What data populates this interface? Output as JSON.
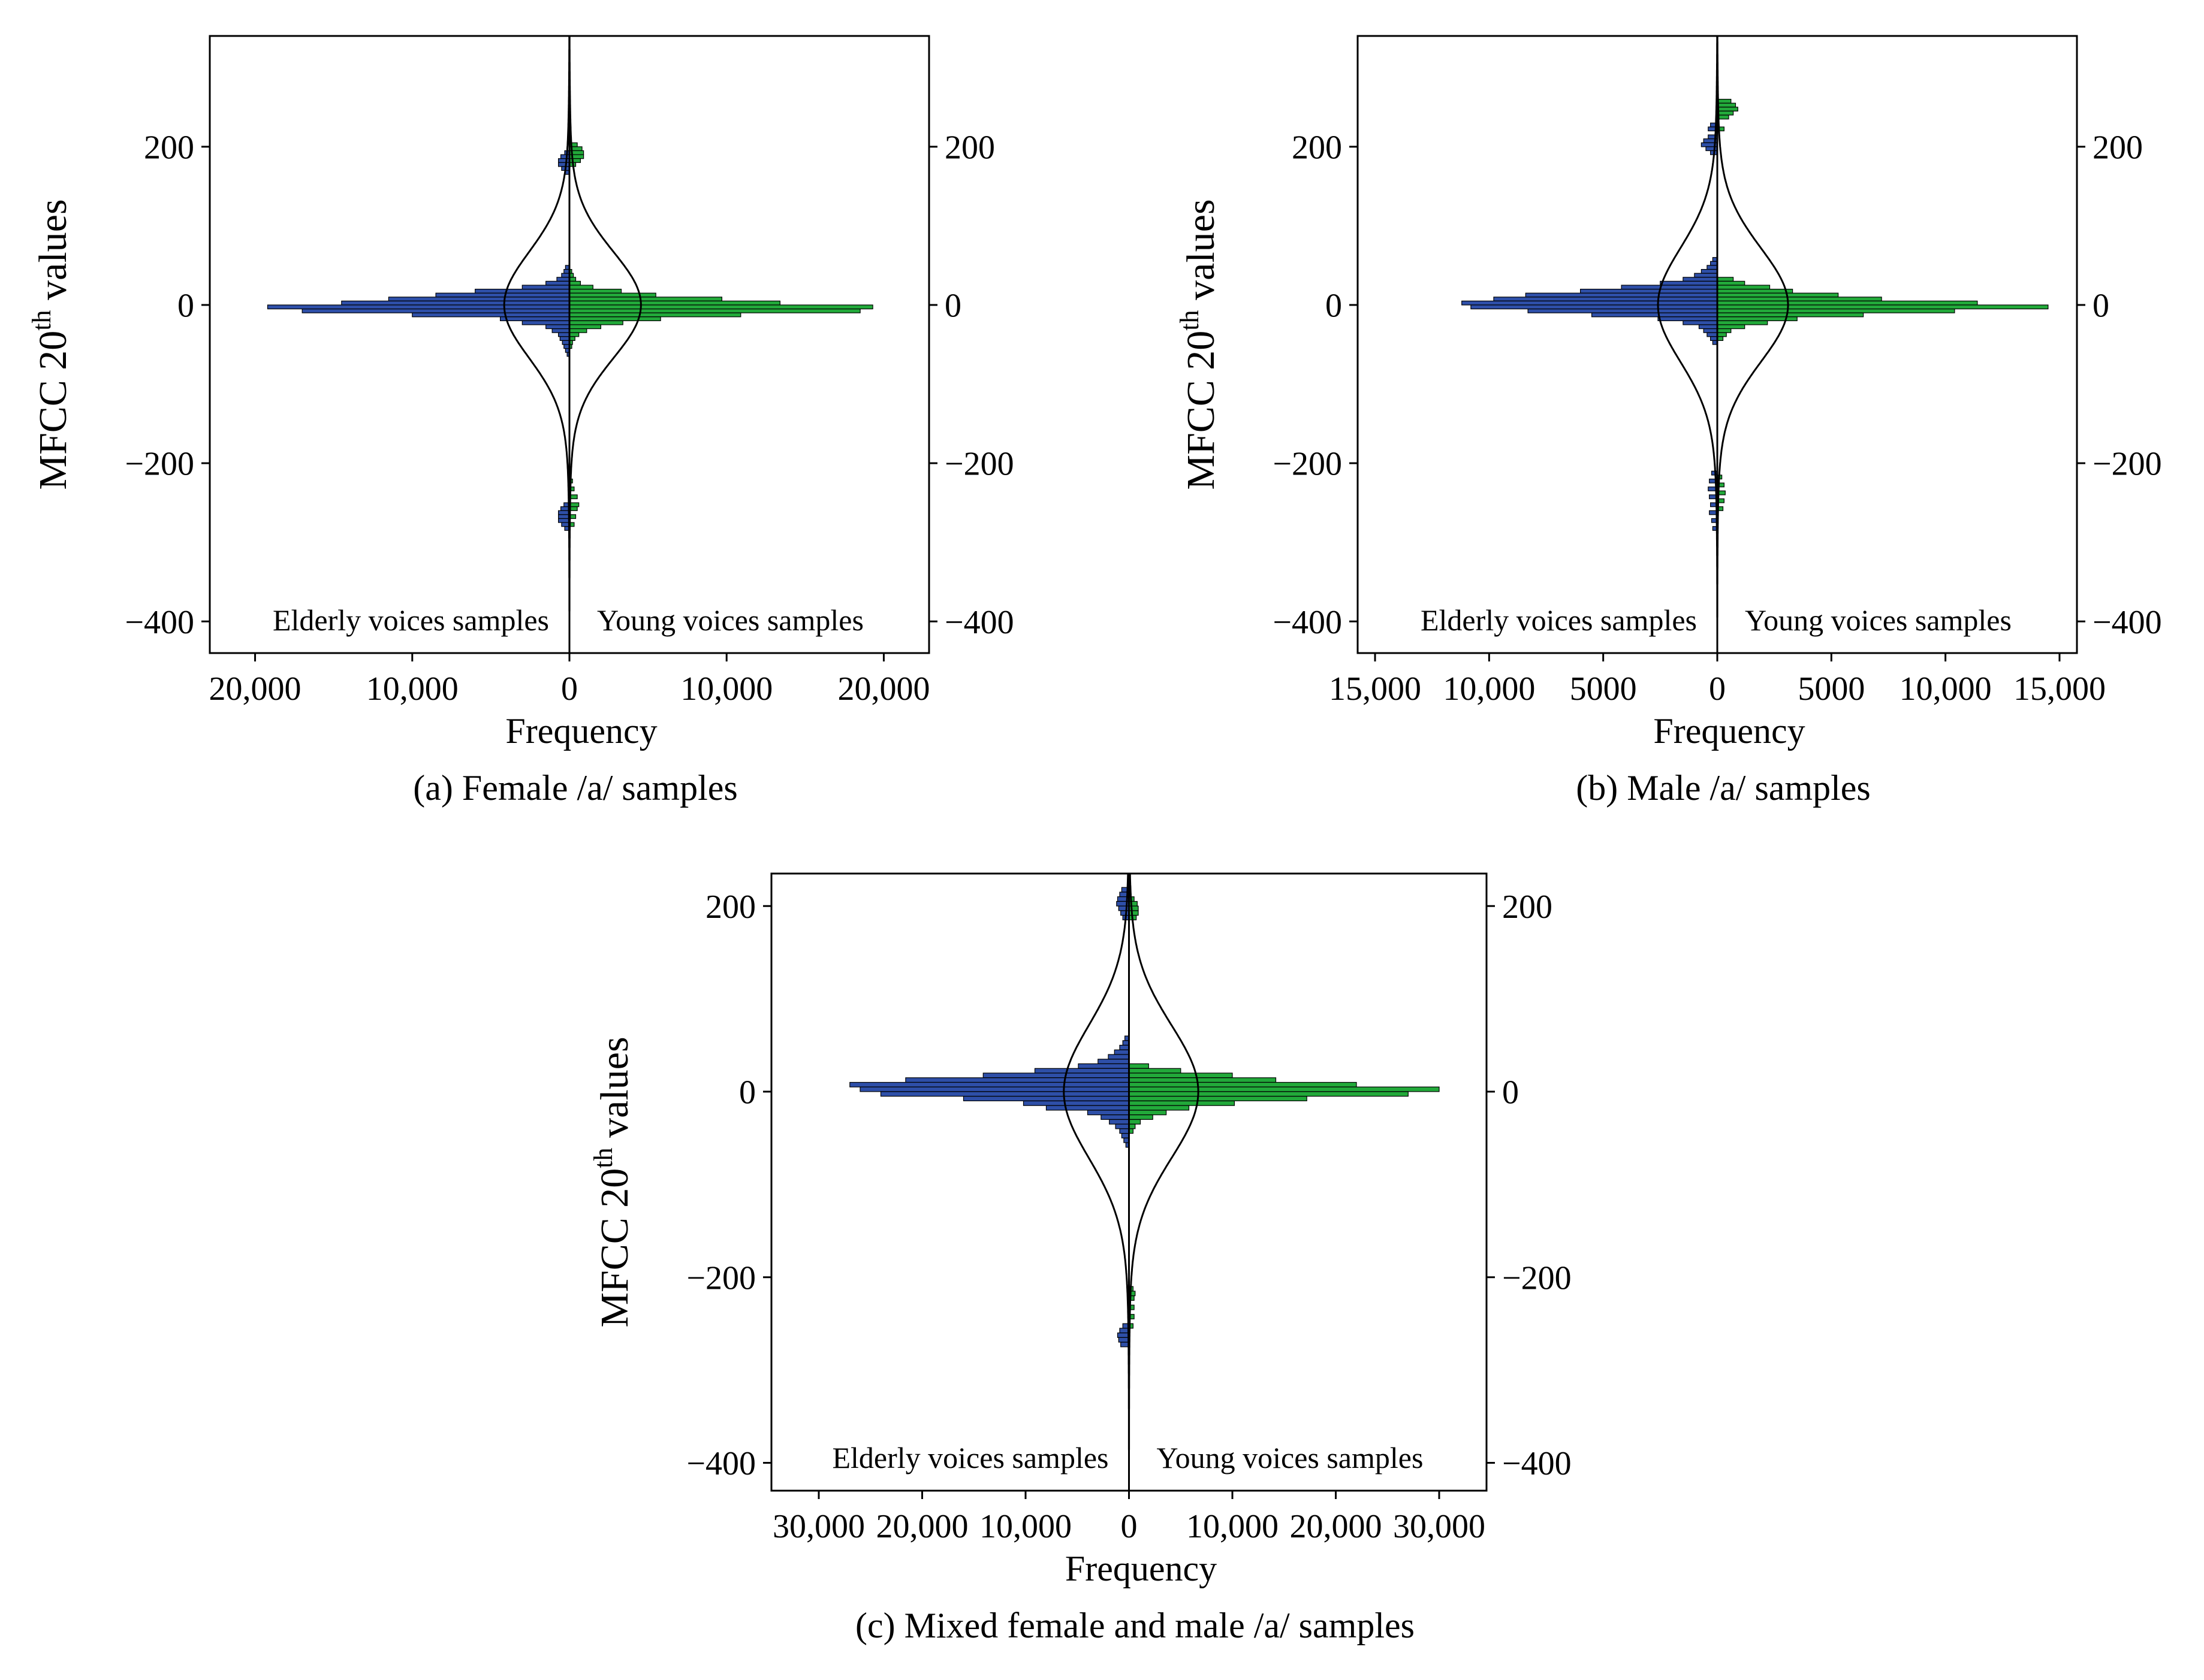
{
  "figure": {
    "colors": {
      "elderly": "#2e4fa8",
      "young": "#22a93a",
      "axis": "#000000",
      "bar_edge": "#000000"
    }
  },
  "chart_data": [
    {
      "id": "a",
      "type": "population-histogram",
      "caption": "(a) Female /a/ samples",
      "xlabel": "Frequency",
      "ylabel_main": "MFCC 20",
      "ylabel_sup": "th",
      "ylabel_tail": " values",
      "ylim": [
        -440,
        340
      ],
      "xmax": 22500,
      "yticks": [
        200,
        0,
        -200,
        -400
      ],
      "ytick_labels": [
        "200",
        "0",
        "−200",
        "−400"
      ],
      "right_ytick_labels": [
        "200",
        "0",
        "−200",
        "−400"
      ],
      "xticks_left": [
        20000,
        10000
      ],
      "xtick_labels_left": [
        "20,000",
        "10,000"
      ],
      "xticks_right": [
        10000,
        20000
      ],
      "xtick_labels_right": [
        "10,000",
        "20,000"
      ],
      "zero_label": "0",
      "bin_width": 5,
      "left_label": "Elderly voices samples",
      "right_label": "Young voices samples",
      "series": [
        {
          "name": "Elderly voices samples",
          "side": "left",
          "bins": [
            [
              190,
              300
            ],
            [
              185,
              550
            ],
            [
              180,
              700
            ],
            [
              175,
              700
            ],
            [
              170,
              500
            ],
            [
              165,
              300
            ],
            [
              45,
              250
            ],
            [
              40,
              350
            ],
            [
              35,
              500
            ],
            [
              30,
              800
            ],
            [
              25,
              1500
            ],
            [
              20,
              3000
            ],
            [
              15,
              6000
            ],
            [
              10,
              8500
            ],
            [
              5,
              11500
            ],
            [
              0,
              14500
            ],
            [
              -5,
              19200
            ],
            [
              -10,
              17000
            ],
            [
              -15,
              10000
            ],
            [
              -20,
              4400
            ],
            [
              -25,
              3000
            ],
            [
              -30,
              1500
            ],
            [
              -35,
              1100
            ],
            [
              -40,
              700
            ],
            [
              -45,
              600
            ],
            [
              -50,
              450
            ],
            [
              -55,
              350
            ],
            [
              -60,
              250
            ],
            [
              -65,
              150
            ],
            [
              -255,
              350
            ],
            [
              -260,
              550
            ],
            [
              -265,
              700
            ],
            [
              -270,
              700
            ],
            [
              -275,
              700
            ],
            [
              -280,
              500
            ],
            [
              -285,
              300
            ]
          ]
        },
        {
          "name": "Young voices samples",
          "side": "right",
          "bins": [
            [
              200,
              500
            ],
            [
              195,
              800
            ],
            [
              190,
              900
            ],
            [
              185,
              900
            ],
            [
              180,
              700
            ],
            [
              175,
              400
            ],
            [
              40,
              150
            ],
            [
              35,
              250
            ],
            [
              30,
              400
            ],
            [
              25,
              700
            ],
            [
              20,
              1500
            ],
            [
              15,
              3300
            ],
            [
              10,
              5500
            ],
            [
              5,
              9700
            ],
            [
              0,
              13400
            ],
            [
              -5,
              19300
            ],
            [
              -10,
              18500
            ],
            [
              -15,
              10900
            ],
            [
              -20,
              5800
            ],
            [
              -25,
              3400
            ],
            [
              -30,
              2000
            ],
            [
              -35,
              1100
            ],
            [
              -40,
              600
            ],
            [
              -45,
              350
            ],
            [
              -50,
              200
            ],
            [
              -55,
              150
            ],
            [
              -225,
              200
            ],
            [
              -235,
              300
            ],
            [
              -245,
              500
            ],
            [
              -255,
              600
            ],
            [
              -260,
              500
            ],
            [
              -270,
              400
            ],
            [
              -280,
              300
            ]
          ]
        }
      ],
      "fit_curves": {
        "elderly_peak": 3800,
        "young_peak": 4200,
        "sigma": 30,
        "tail": 350
      }
    },
    {
      "id": "b",
      "type": "population-histogram",
      "caption": "(b) Male /a/ samples",
      "xlabel": "Frequency",
      "ylabel_main": "MFCC 20",
      "ylabel_sup": "th",
      "ylabel_tail": " values",
      "ylim": [
        -440,
        340
      ],
      "xmax": 15500,
      "yticks": [
        200,
        0,
        -200,
        -400
      ],
      "ytick_labels": [
        "200",
        "0",
        "−200",
        "−400"
      ],
      "right_ytick_labels": [
        "200",
        "0",
        "−200",
        "−400"
      ],
      "xticks_left": [
        15000,
        10000,
        5000
      ],
      "xtick_labels_left": [
        "15,000",
        "10,000",
        "5000"
      ],
      "xticks_right": [
        5000,
        10000,
        15000
      ],
      "xtick_labels_right": [
        "5000",
        "10,000",
        "15,000"
      ],
      "zero_label": "0",
      "bin_width": 5,
      "left_label": "Elderly voices samples",
      "right_label": "Young voices samples",
      "series": [
        {
          "name": "Elderly voices samples",
          "side": "left",
          "bins": [
            [
              225,
              300
            ],
            [
              220,
              400
            ],
            [
              210,
              400
            ],
            [
              205,
              600
            ],
            [
              200,
              700
            ],
            [
              195,
              500
            ],
            [
              190,
              300
            ],
            [
              55,
              200
            ],
            [
              50,
              300
            ],
            [
              45,
              450
            ],
            [
              40,
              700
            ],
            [
              35,
              1000
            ],
            [
              30,
              1500
            ],
            [
              25,
              2500
            ],
            [
              20,
              4200
            ],
            [
              15,
              6000
            ],
            [
              10,
              8400
            ],
            [
              5,
              9800
            ],
            [
              0,
              11200
            ],
            [
              -5,
              10800
            ],
            [
              -10,
              8300
            ],
            [
              -15,
              5500
            ],
            [
              -20,
              2600
            ],
            [
              -25,
              1500
            ],
            [
              -30,
              800
            ],
            [
              -35,
              600
            ],
            [
              -40,
              450
            ],
            [
              -45,
              300
            ],
            [
              -50,
              200
            ],
            [
              -215,
              250
            ],
            [
              -225,
              350
            ],
            [
              -235,
              400
            ],
            [
              -245,
              350
            ],
            [
              -255,
              300
            ],
            [
              -265,
              350
            ],
            [
              -275,
              250
            ],
            [
              -285,
              200
            ]
          ]
        },
        {
          "name": "Young voices samples",
          "side": "right",
          "bins": [
            [
              255,
              600
            ],
            [
              250,
              800
            ],
            [
              245,
              900
            ],
            [
              240,
              700
            ],
            [
              235,
              500
            ],
            [
              220,
              300
            ],
            [
              30,
              700
            ],
            [
              25,
              1200
            ],
            [
              20,
              2300
            ],
            [
              15,
              3300
            ],
            [
              10,
              5300
            ],
            [
              5,
              7200
            ],
            [
              0,
              11400
            ],
            [
              -5,
              14500
            ],
            [
              -10,
              10400
            ],
            [
              -15,
              6400
            ],
            [
              -20,
              3500
            ],
            [
              -25,
              2200
            ],
            [
              -30,
              1200
            ],
            [
              -35,
              600
            ],
            [
              -40,
              400
            ],
            [
              -45,
              250
            ],
            [
              -220,
              200
            ],
            [
              -230,
              300
            ],
            [
              -240,
              350
            ],
            [
              -250,
              300
            ],
            [
              -260,
              250
            ]
          ]
        }
      ],
      "fit_curves": {
        "elderly_peak": 2300,
        "young_peak": 2800,
        "sigma": 32,
        "tail": 300
      }
    },
    {
      "id": "c",
      "type": "population-histogram",
      "caption": "(c) Mixed female and male /a/ samples",
      "xlabel": "Frequency",
      "ylabel_main": "MFCC 20",
      "ylabel_sup": "th",
      "ylabel_tail": " values",
      "ylim": [
        -430,
        235
      ],
      "xmax": 34000,
      "yticks": [
        200,
        0,
        -200,
        -400
      ],
      "ytick_labels": [
        "200",
        "0",
        "−200",
        "−400"
      ],
      "right_ytick_labels": [
        "200",
        "0",
        "−200",
        "−400"
      ],
      "xticks_left": [
        30000,
        20000,
        10000
      ],
      "xtick_labels_left": [
        "30,000",
        "20,000",
        "10,000"
      ],
      "xticks_right": [
        10000,
        20000,
        30000
      ],
      "xtick_labels_right": [
        "10,000",
        "20,000",
        "30,000"
      ],
      "zero_label": "0",
      "bin_width": 5,
      "left_label": "Elderly voices samples",
      "right_label": "Young voices samples",
      "series": [
        {
          "name": "Elderly voices samples",
          "side": "left",
          "bins": [
            [
              215,
              700
            ],
            [
              210,
              900
            ],
            [
              205,
              1100
            ],
            [
              200,
              1200
            ],
            [
              195,
              1000
            ],
            [
              190,
              800
            ],
            [
              185,
              600
            ],
            [
              55,
              400
            ],
            [
              50,
              600
            ],
            [
              45,
              900
            ],
            [
              40,
              1400
            ],
            [
              35,
              2000
            ],
            [
              30,
              3000
            ],
            [
              25,
              4900
            ],
            [
              20,
              9100
            ],
            [
              15,
              14100
            ],
            [
              10,
              21600
            ],
            [
              5,
              27000
            ],
            [
              0,
              26000
            ],
            [
              -5,
              24000
            ],
            [
              -10,
              16000
            ],
            [
              -15,
              10200
            ],
            [
              -20,
              8000
            ],
            [
              -25,
              4000
            ],
            [
              -30,
              2700
            ],
            [
              -35,
              1900
            ],
            [
              -40,
              1300
            ],
            [
              -45,
              900
            ],
            [
              -50,
              700
            ],
            [
              -55,
              500
            ],
            [
              -60,
              300
            ],
            [
              -255,
              600
            ],
            [
              -260,
              900
            ],
            [
              -265,
              1100
            ],
            [
              -270,
              1000
            ],
            [
              -275,
              800
            ]
          ]
        },
        {
          "name": "Young voices samples",
          "side": "right",
          "bins": [
            [
              205,
              500
            ],
            [
              200,
              800
            ],
            [
              195,
              900
            ],
            [
              190,
              900
            ],
            [
              185,
              700
            ],
            [
              25,
              1900
            ],
            [
              20,
              5000
            ],
            [
              15,
              10000
            ],
            [
              10,
              14200
            ],
            [
              5,
              22000
            ],
            [
              0,
              30000
            ],
            [
              -5,
              27000
            ],
            [
              -10,
              17200
            ],
            [
              -15,
              10200
            ],
            [
              -20,
              5800
            ],
            [
              -25,
              3600
            ],
            [
              -30,
              2300
            ],
            [
              -35,
              1100
            ],
            [
              -40,
              600
            ],
            [
              -45,
              400
            ],
            [
              -215,
              400
            ],
            [
              -220,
              600
            ],
            [
              -225,
              500
            ],
            [
              -235,
              500
            ],
            [
              -245,
              500
            ],
            [
              -255,
              400
            ]
          ]
        }
      ],
      "fit_curves": {
        "elderly_peak": 5800,
        "young_peak": 6200,
        "sigma": 32,
        "tail": 500
      }
    }
  ]
}
